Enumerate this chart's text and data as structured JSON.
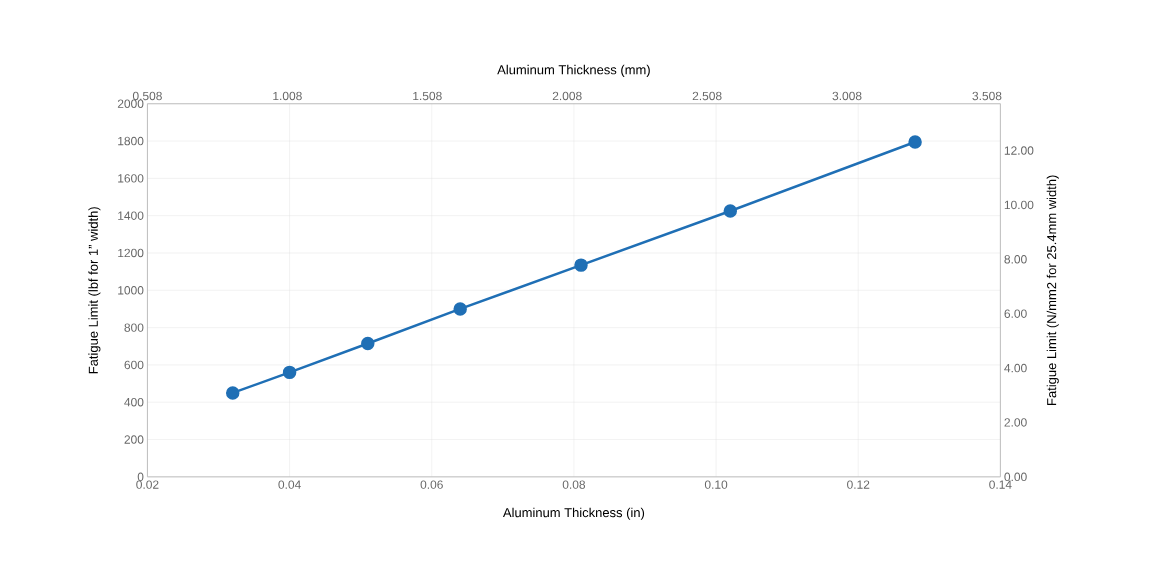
{
  "chart_data": {
    "type": "line",
    "xlabel": "Aluminum Thickness (in)",
    "x2label": "Aluminum Thickness (mm)",
    "ylabel": "Fatigue Limit (lbf for 1” width)",
    "y2label": "Fatigue Limit (N/mm2 for 25.4mm width)",
    "x": [
      0.032,
      0.04,
      0.051,
      0.064,
      0.081,
      0.102,
      0.128
    ],
    "series": [
      {
        "color": "#1f6fb5",
        "values": [
          450,
          560,
          715,
          900,
          1135,
          1425,
          1795
        ]
      }
    ],
    "xlim": [
      0.02,
      0.14
    ],
    "xticks": [
      0.02,
      0.04,
      0.06,
      0.08,
      {
        "value": 0.1,
        "label": "0.10"
      },
      0.12,
      0.14
    ],
    "x2lim": [
      0.508,
      3.556
    ],
    "x2ticks": [
      0.508,
      1.008,
      1.508,
      2.008,
      2.508,
      3.008,
      3.508
    ],
    "ylim": [
      0,
      2000
    ],
    "yticks": [
      0,
      200,
      400,
      600,
      800,
      1000,
      1200,
      1400,
      1600,
      1800,
      2000
    ],
    "y2lim": [
      0,
      13.72
    ],
    "y2ticks": [
      {
        "value": 0,
        "label": "0.00"
      },
      {
        "value": 2,
        "label": "2.00"
      },
      {
        "value": 4,
        "label": "4.00"
      },
      {
        "value": 6,
        "label": "6.00"
      },
      {
        "value": 8,
        "label": "8.00"
      },
      {
        "value": 10,
        "label": "10.00"
      },
      {
        "value": 12,
        "label": "12.00"
      }
    ],
    "grid": true,
    "marker": "circle",
    "line_style": "solid"
  }
}
